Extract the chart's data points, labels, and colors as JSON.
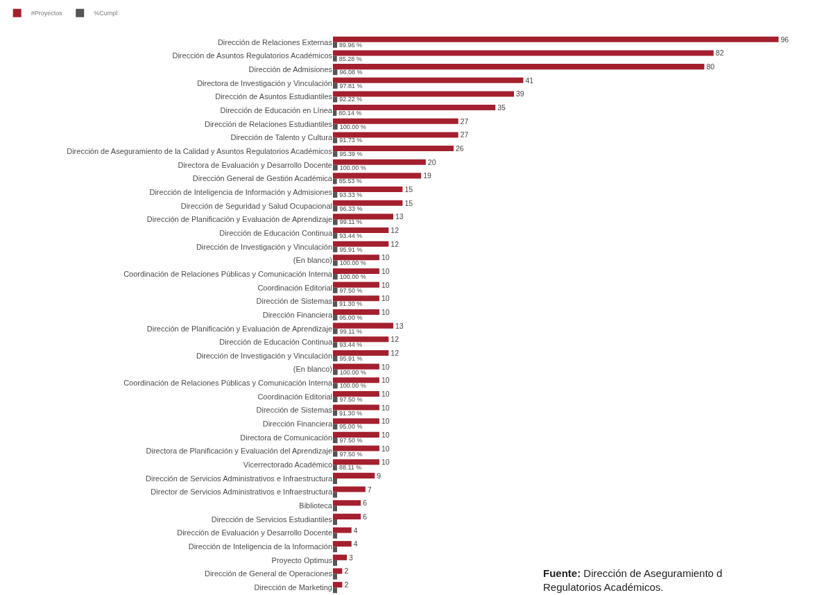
{
  "chart_data": {
    "type": "bar",
    "orientation": "horizontal",
    "legend": "top left",
    "tick_labels": "y",
    "categories": [
      "Dirección de Relaciones Externas",
      "Dirección de Asuntos Regulatorios Académicos",
      "Dirección de Admisiones",
      "Directora de Investigación y Vinculación",
      "Dirección de Asuntos Estudiantiles",
      "Dirección de Educación en Línea",
      "Dirección de Relaciones Estudiantiles",
      "Dirección de Talento y Cultura",
      "Dirección de Aseguramiento de la Calidad y Asuntos Regulatorios Académicos",
      "Directora de Evaluación y Desarrollo Docente",
      "Dirección General de Gestión Académica",
      "Dirección de Inteligencia de Información y Admisiones",
      "Dirección de Seguridad y Salud Ocupacional",
      "Dirección de Planificación y Evaluación de Aprendizaje",
      "Dirección de Educación Continua",
      "Dirección de Investigación y Vinculación",
      "(En blanco)",
      "Coordinación de Relaciones Públicas y Comunicación Interna",
      "Coordinación Editorial",
      "Dirección de Sistemas",
      "Dirección Financiera",
      "Dirección de Planificación y Evaluación de Aprendizaje",
      "Dirección de Educación Continua",
      "Dirección de Investigación y Vinculación",
      "(En blanco)",
      "Coordinación de Relaciones Públicas y Comunicación Interna",
      "Coordinación Editorial",
      "Dirección de Sistemas",
      "Dirección Financiera",
      "Directora de Comunicación",
      "Directora de Planificación y Evaluación del Aprendizaje",
      "Vicerrectorado Académico",
      "Dirección de Servicios Administrativos e Infraestructura",
      "Director de Servicios Administrativos e Infraestructura",
      "Biblioteca",
      "Dirección de Servicios Estudiantiles",
      "Dirección de Evaluación y Desarrollo Docente",
      "Dirección de Inteligencia de la Información",
      "Proyecto Optimus",
      "Dirección de General de Operaciones",
      "Dirección de Marketing"
    ],
    "series": [
      {
        "name": "#Proyectos",
        "color": "#a4202e",
        "values": [
          96,
          82,
          80,
          41,
          39,
          35,
          27,
          27,
          26,
          20,
          19,
          15,
          15,
          13,
          12,
          12,
          10,
          10,
          10,
          10,
          10,
          13,
          12,
          12,
          10,
          10,
          10,
          10,
          10,
          10,
          10,
          10,
          9,
          7,
          6,
          6,
          4,
          4,
          3,
          2,
          2
        ],
        "value_labels": [
          "96",
          "82",
          "80",
          "41",
          "39",
          "35",
          "27",
          "27",
          "26",
          "20",
          "19",
          "15",
          "15",
          "13",
          "12",
          "12",
          "10",
          "10",
          "10",
          "10",
          "10",
          "13",
          "12",
          "12",
          "10",
          "10",
          "10",
          "10",
          "10",
          "10",
          "10",
          "10",
          "9",
          "7",
          "6",
          "6",
          "4",
          "4",
          "3",
          "2",
          "2"
        ]
      },
      {
        "name": "%Cumpl",
        "color": "#555555",
        "values": [
          0.8996,
          0.8528,
          0.9608,
          0.9781,
          0.9222,
          0.8014,
          1.0,
          0.9173,
          0.9539,
          1.0,
          0.8553,
          0.9333,
          0.9633,
          0.9911,
          0.9344,
          0.9591,
          1.0,
          1.0,
          0.975,
          0.913,
          0.95,
          0.9911,
          0.9344,
          0.9591,
          1.0,
          1.0,
          0.975,
          0.913,
          0.95,
          0.975,
          0.975,
          0.8811,
          0.9,
          0.9,
          0.9,
          0.9,
          0.9,
          0.9,
          0.9,
          0.9,
          0.9
        ],
        "value_labels": [
          "89.96 %",
          "85.28 %",
          "96.08 %",
          "97.81 %",
          "92.22 %",
          "80.14 %",
          "100.00 %",
          "91.73 %",
          "95.39 %",
          "100.00 %",
          "85.53 %",
          "93.33 %",
          "96.33 %",
          "99.11 %",
          "93.44 %",
          "95.91 %",
          "100.00 %",
          "100.00 %",
          "97.50 %",
          "91.30 %",
          "95.00 %",
          "99.11 %",
          "93.44 %",
          "95.91 %",
          "100.00 %",
          "100.00 %",
          "97.50 %",
          "91.30 %",
          "95.00 %",
          "97.50 %",
          "97.50 %",
          "88.11 %",
          null,
          null,
          null,
          null,
          null,
          null,
          null,
          null,
          null
        ]
      }
    ],
    "annotations": [
      "Fuente: Dirección de Aseguramiento d\nRegulatorios Académicos."
    ]
  }
}
